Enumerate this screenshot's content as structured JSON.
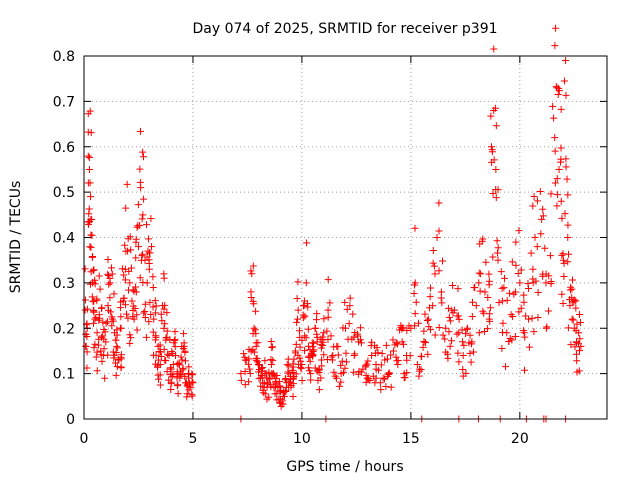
{
  "chart_data": {
    "type": "scatter",
    "title": "Day 074 of 2025, SRMTID for receiver p391",
    "xlabel": "GPS time / hours",
    "ylabel": "SRMTID / TECUs",
    "xlim": [
      0,
      24
    ],
    "ylim": [
      0,
      0.8
    ],
    "x_ticks": [
      0,
      5,
      10,
      15,
      20
    ],
    "y_ticks": [
      0,
      0.1,
      0.2,
      0.3,
      0.4,
      0.5,
      0.6,
      0.7,
      0.8
    ],
    "x_tick_labels": [
      "0",
      "5",
      "10",
      "15",
      "20"
    ],
    "y_tick_labels": [
      "0",
      "0.1",
      "0.2",
      "0.3",
      "0.4",
      "0.5",
      "0.6",
      "0.7",
      "0.8"
    ],
    "grid": true,
    "marker": "plus",
    "color": "#ff0000",
    "series": [
      {
        "name": "SRMTID",
        "points": [
          [
            0.05,
            0.24
          ],
          [
            0.1,
            0.16
          ],
          [
            0.15,
            0.2
          ],
          [
            0.2,
            0.52
          ],
          [
            0.25,
            0.55
          ],
          [
            0.3,
            0.49
          ],
          [
            0.35,
            0.44
          ],
          [
            0.4,
            0.3
          ],
          [
            0.45,
            0.26
          ],
          [
            0.5,
            0.22
          ],
          [
            0.6,
            0.19
          ],
          [
            0.7,
            0.23
          ],
          [
            0.8,
            0.18
          ],
          [
            0.9,
            0.14
          ],
          [
            1.0,
            0.17
          ],
          [
            1.1,
            0.25
          ],
          [
            1.2,
            0.3
          ],
          [
            1.3,
            0.22
          ],
          [
            1.4,
            0.19
          ],
          [
            1.5,
            0.16
          ],
          [
            1.6,
            0.13
          ],
          [
            1.7,
            0.2
          ],
          [
            1.8,
            0.26
          ],
          [
            1.9,
            0.33
          ],
          [
            2.0,
            0.37
          ],
          [
            2.1,
            0.3
          ],
          [
            2.2,
            0.26
          ],
          [
            2.3,
            0.22
          ],
          [
            2.4,
            0.28
          ],
          [
            2.5,
            0.38
          ],
          [
            2.6,
            0.51
          ],
          [
            2.7,
            0.45
          ],
          [
            2.8,
            0.35
          ],
          [
            2.9,
            0.3
          ],
          [
            3.0,
            0.33
          ],
          [
            3.1,
            0.38
          ],
          [
            3.2,
            0.22
          ],
          [
            3.3,
            0.18
          ],
          [
            3.4,
            0.16
          ],
          [
            3.5,
            0.12
          ],
          [
            3.6,
            0.25
          ],
          [
            3.7,
            0.21
          ],
          [
            3.8,
            0.18
          ],
          [
            3.9,
            0.14
          ],
          [
            4.0,
            0.11
          ],
          [
            4.1,
            0.12
          ],
          [
            4.2,
            0.14
          ],
          [
            4.3,
            0.1
          ],
          [
            4.4,
            0.09
          ],
          [
            4.5,
            0.13
          ],
          [
            4.6,
            0.16
          ],
          [
            4.7,
            0.08
          ],
          [
            4.8,
            0.09
          ],
          [
            4.9,
            0.07
          ],
          [
            5.0,
            0.08
          ],
          [
            7.2,
            0.1
          ],
          [
            7.4,
            0.13
          ],
          [
            7.6,
            0.11
          ],
          [
            7.7,
            0.32
          ],
          [
            7.8,
            0.2
          ],
          [
            7.9,
            0.16
          ],
          [
            8.0,
            0.12
          ],
          [
            8.1,
            0.09
          ],
          [
            8.2,
            0.08
          ],
          [
            8.3,
            0.1
          ],
          [
            8.4,
            0.07
          ],
          [
            8.5,
            0.09
          ],
          [
            8.6,
            0.12
          ],
          [
            8.7,
            0.1
          ],
          [
            8.8,
            0.08
          ],
          [
            8.9,
            0.07
          ],
          [
            9.0,
            0.06
          ],
          [
            9.1,
            0.04
          ],
          [
            9.2,
            0.05
          ],
          [
            9.3,
            0.08
          ],
          [
            9.4,
            0.1
          ],
          [
            9.5,
            0.07
          ],
          [
            9.6,
            0.09
          ],
          [
            9.7,
            0.15
          ],
          [
            9.8,
            0.22
          ],
          [
            9.9,
            0.18
          ],
          [
            10.0,
            0.12
          ],
          [
            10.1,
            0.25
          ],
          [
            10.2,
            0.3
          ],
          [
            10.3,
            0.16
          ],
          [
            10.4,
            0.1
          ],
          [
            10.5,
            0.14
          ],
          [
            10.6,
            0.2
          ],
          [
            10.7,
            0.17
          ],
          [
            10.8,
            0.11
          ],
          [
            10.9,
            0.13
          ],
          [
            11.0,
            0.19
          ],
          [
            11.2,
            0.24
          ],
          [
            11.4,
            0.13
          ],
          [
            11.6,
            0.16
          ],
          [
            11.8,
            0.1
          ],
          [
            12.0,
            0.2
          ],
          [
            12.2,
            0.25
          ],
          [
            12.4,
            0.14
          ],
          [
            12.6,
            0.17
          ],
          [
            12.8,
            0.11
          ],
          [
            13.0,
            0.09
          ],
          [
            13.2,
            0.14
          ],
          [
            13.4,
            0.12
          ],
          [
            13.6,
            0.08
          ],
          [
            13.8,
            0.13
          ],
          [
            14.0,
            0.1
          ],
          [
            14.2,
            0.15
          ],
          [
            14.4,
            0.12
          ],
          [
            14.6,
            0.17
          ],
          [
            14.8,
            0.14
          ],
          [
            15.0,
            0.2
          ],
          [
            15.2,
            0.3
          ],
          [
            15.4,
            0.11
          ],
          [
            15.6,
            0.17
          ],
          [
            15.8,
            0.22
          ],
          [
            16.0,
            0.25
          ],
          [
            16.2,
            0.4
          ],
          [
            16.4,
            0.28
          ],
          [
            16.6,
            0.2
          ],
          [
            16.8,
            0.16
          ],
          [
            17.0,
            0.24
          ],
          [
            17.2,
            0.19
          ],
          [
            17.4,
            0.14
          ],
          [
            17.6,
            0.2
          ],
          [
            17.8,
            0.17
          ],
          [
            18.0,
            0.25
          ],
          [
            18.2,
            0.32
          ],
          [
            18.4,
            0.28
          ],
          [
            18.6,
            0.22
          ],
          [
            18.7,
            0.6
          ],
          [
            18.8,
            0.68
          ],
          [
            18.9,
            0.55
          ],
          [
            19.0,
            0.35
          ],
          [
            19.2,
            0.26
          ],
          [
            19.4,
            0.19
          ],
          [
            19.6,
            0.23
          ],
          [
            19.8,
            0.28
          ],
          [
            20.0,
            0.3
          ],
          [
            20.2,
            0.19
          ],
          [
            20.4,
            0.22
          ],
          [
            20.6,
            0.33
          ],
          [
            20.8,
            0.38
          ],
          [
            21.0,
            0.44
          ],
          [
            21.2,
            0.3
          ],
          [
            21.4,
            0.36
          ],
          [
            21.6,
            0.62
          ],
          [
            21.7,
            0.73
          ],
          [
            21.8,
            0.55
          ],
          [
            21.9,
            0.48
          ],
          [
            22.0,
            0.35
          ],
          [
            22.1,
            0.79
          ],
          [
            22.2,
            0.4
          ],
          [
            22.3,
            0.25
          ],
          [
            22.4,
            0.22
          ],
          [
            22.5,
            0.2
          ],
          [
            22.6,
            0.17
          ],
          [
            22.7,
            0.19
          ],
          [
            22.8,
            0.16
          ]
        ]
      }
    ],
    "zero_points_x": [
      7.2,
      11.1,
      15.5,
      17.2,
      18.1,
      19.1,
      20.3,
      21.1,
      21.2,
      22.1
    ]
  }
}
